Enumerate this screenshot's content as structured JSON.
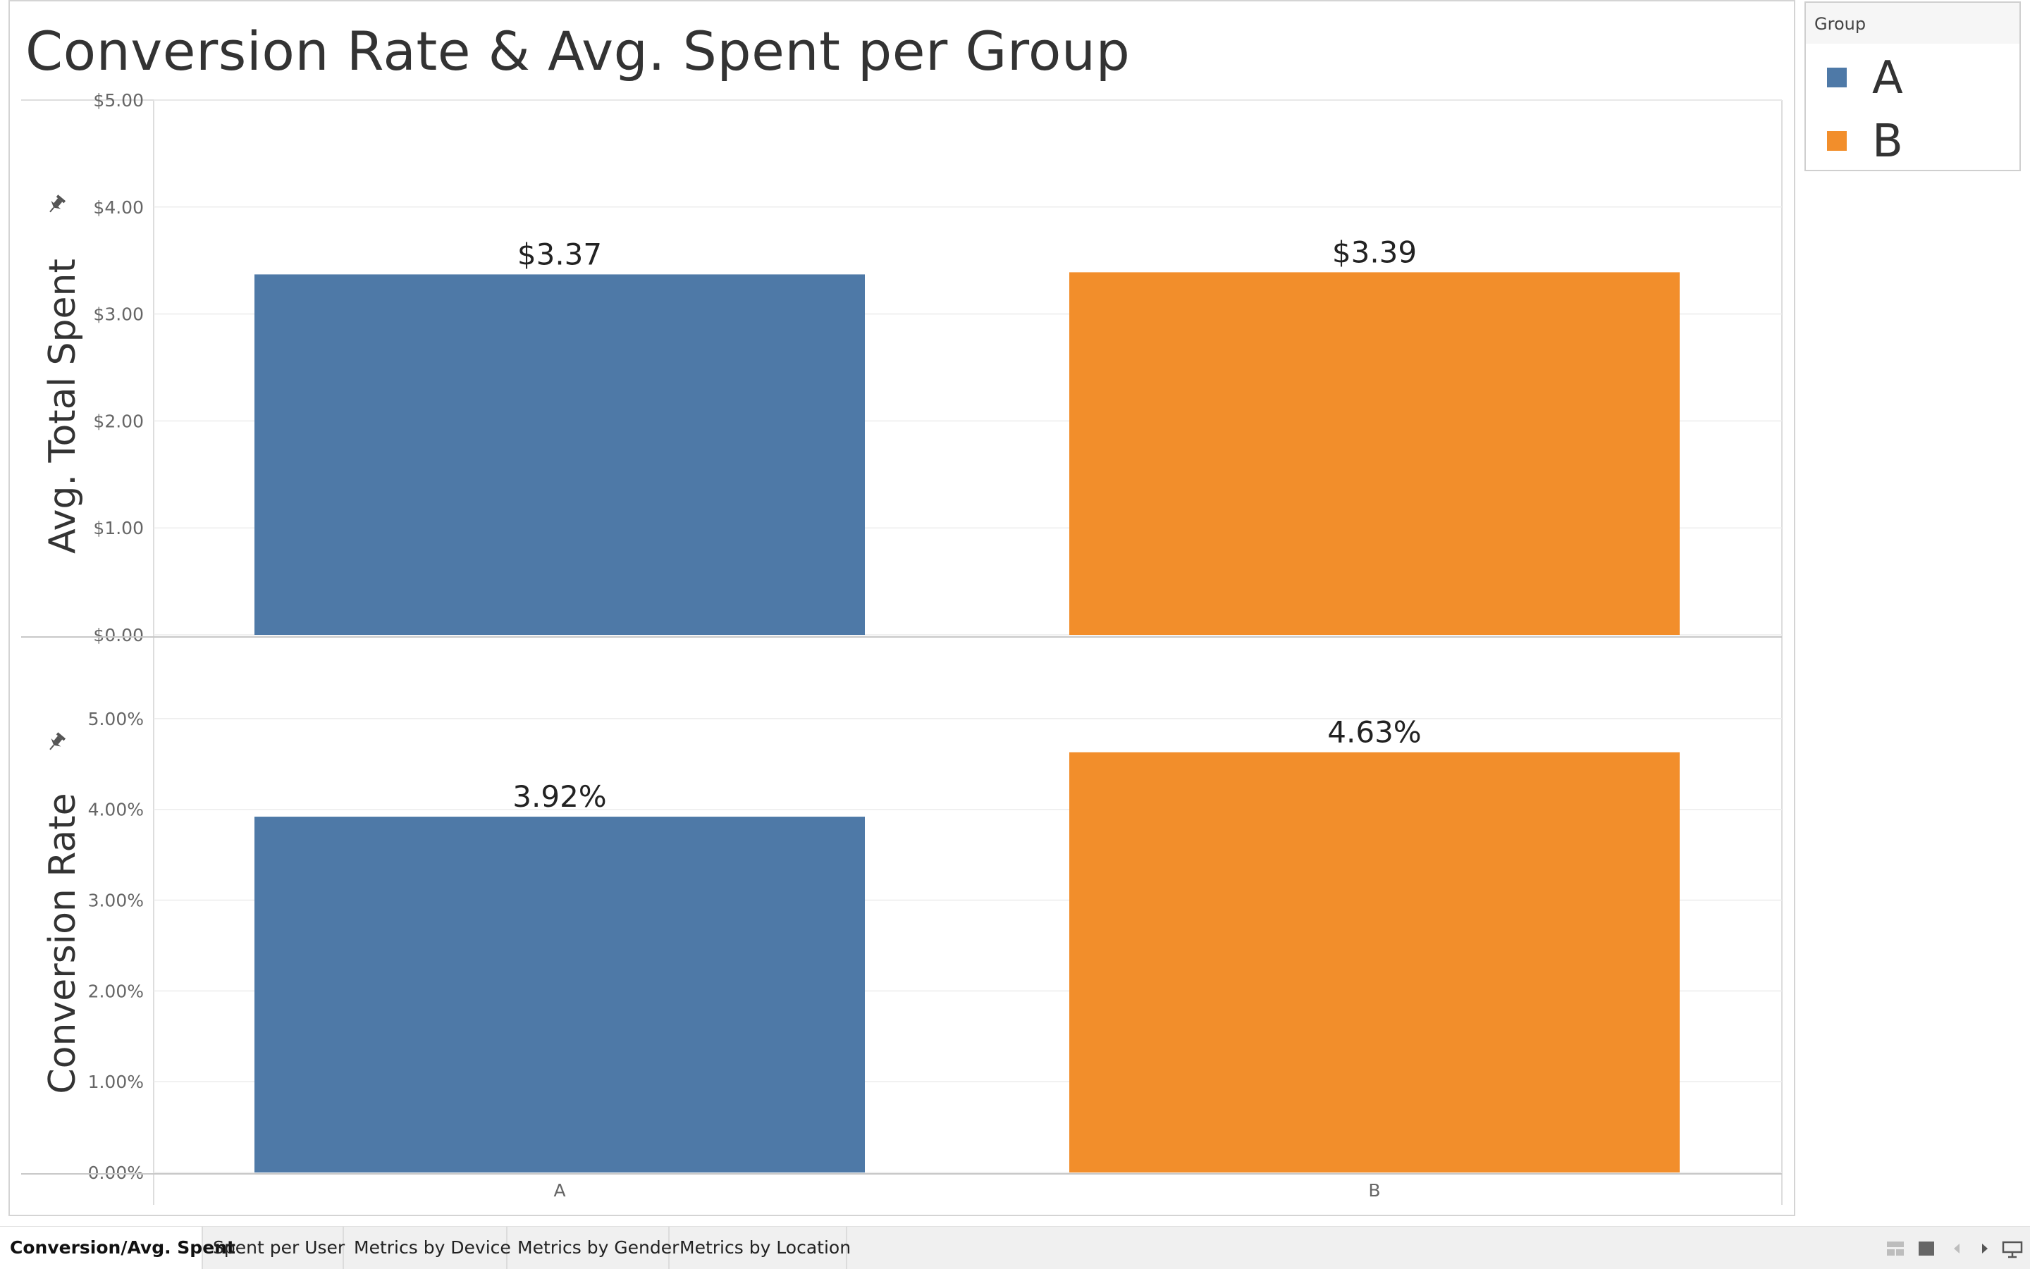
{
  "title": "Conversion Rate & Avg. Spent per Group",
  "legend": {
    "title": "Group",
    "items": [
      {
        "label": "A",
        "color": "#4e79a7"
      },
      {
        "label": "B",
        "color": "#f28e2b"
      }
    ]
  },
  "chart_data": [
    {
      "type": "bar",
      "categories": [
        "A",
        "B"
      ],
      "values": [
        3.37,
        3.39
      ],
      "value_labels": [
        "$3.37",
        "$3.39"
      ],
      "colors": [
        "#4e79a7",
        "#f28e2b"
      ],
      "ylabel": "Avg. Total Spent",
      "ylim": [
        0,
        5
      ],
      "yticks": [
        0,
        1,
        2,
        3,
        4,
        5
      ],
      "ytick_labels": [
        "$0.00",
        "$1.00",
        "$2.00",
        "$3.00",
        "$4.00",
        "$5.00"
      ],
      "grid": true
    },
    {
      "type": "bar",
      "categories": [
        "A",
        "B"
      ],
      "values": [
        3.92,
        4.63
      ],
      "value_labels": [
        "3.92%",
        "4.63%"
      ],
      "colors": [
        "#4e79a7",
        "#f28e2b"
      ],
      "ylabel": "Conversion Rate",
      "ylim": [
        0,
        5.9
      ],
      "yticks": [
        0,
        1,
        2,
        3,
        4,
        5
      ],
      "ytick_labels": [
        "0.00%",
        "1.00%",
        "2.00%",
        "3.00%",
        "4.00%",
        "5.00%"
      ],
      "xtick_labels": [
        "A",
        "B"
      ],
      "grid": true
    }
  ],
  "tabs": [
    {
      "label": "Conversion/Avg. Spent",
      "active": true
    },
    {
      "label": "Spent per User",
      "active": false
    },
    {
      "label": "Metrics by Device",
      "active": false
    },
    {
      "label": "Metrics by Gender",
      "active": false
    },
    {
      "label": "Metrics by Location",
      "active": false
    }
  ],
  "nav_icons": [
    "grid-view-icon",
    "single-view-icon",
    "prev-icon",
    "next-icon",
    "present-icon"
  ]
}
